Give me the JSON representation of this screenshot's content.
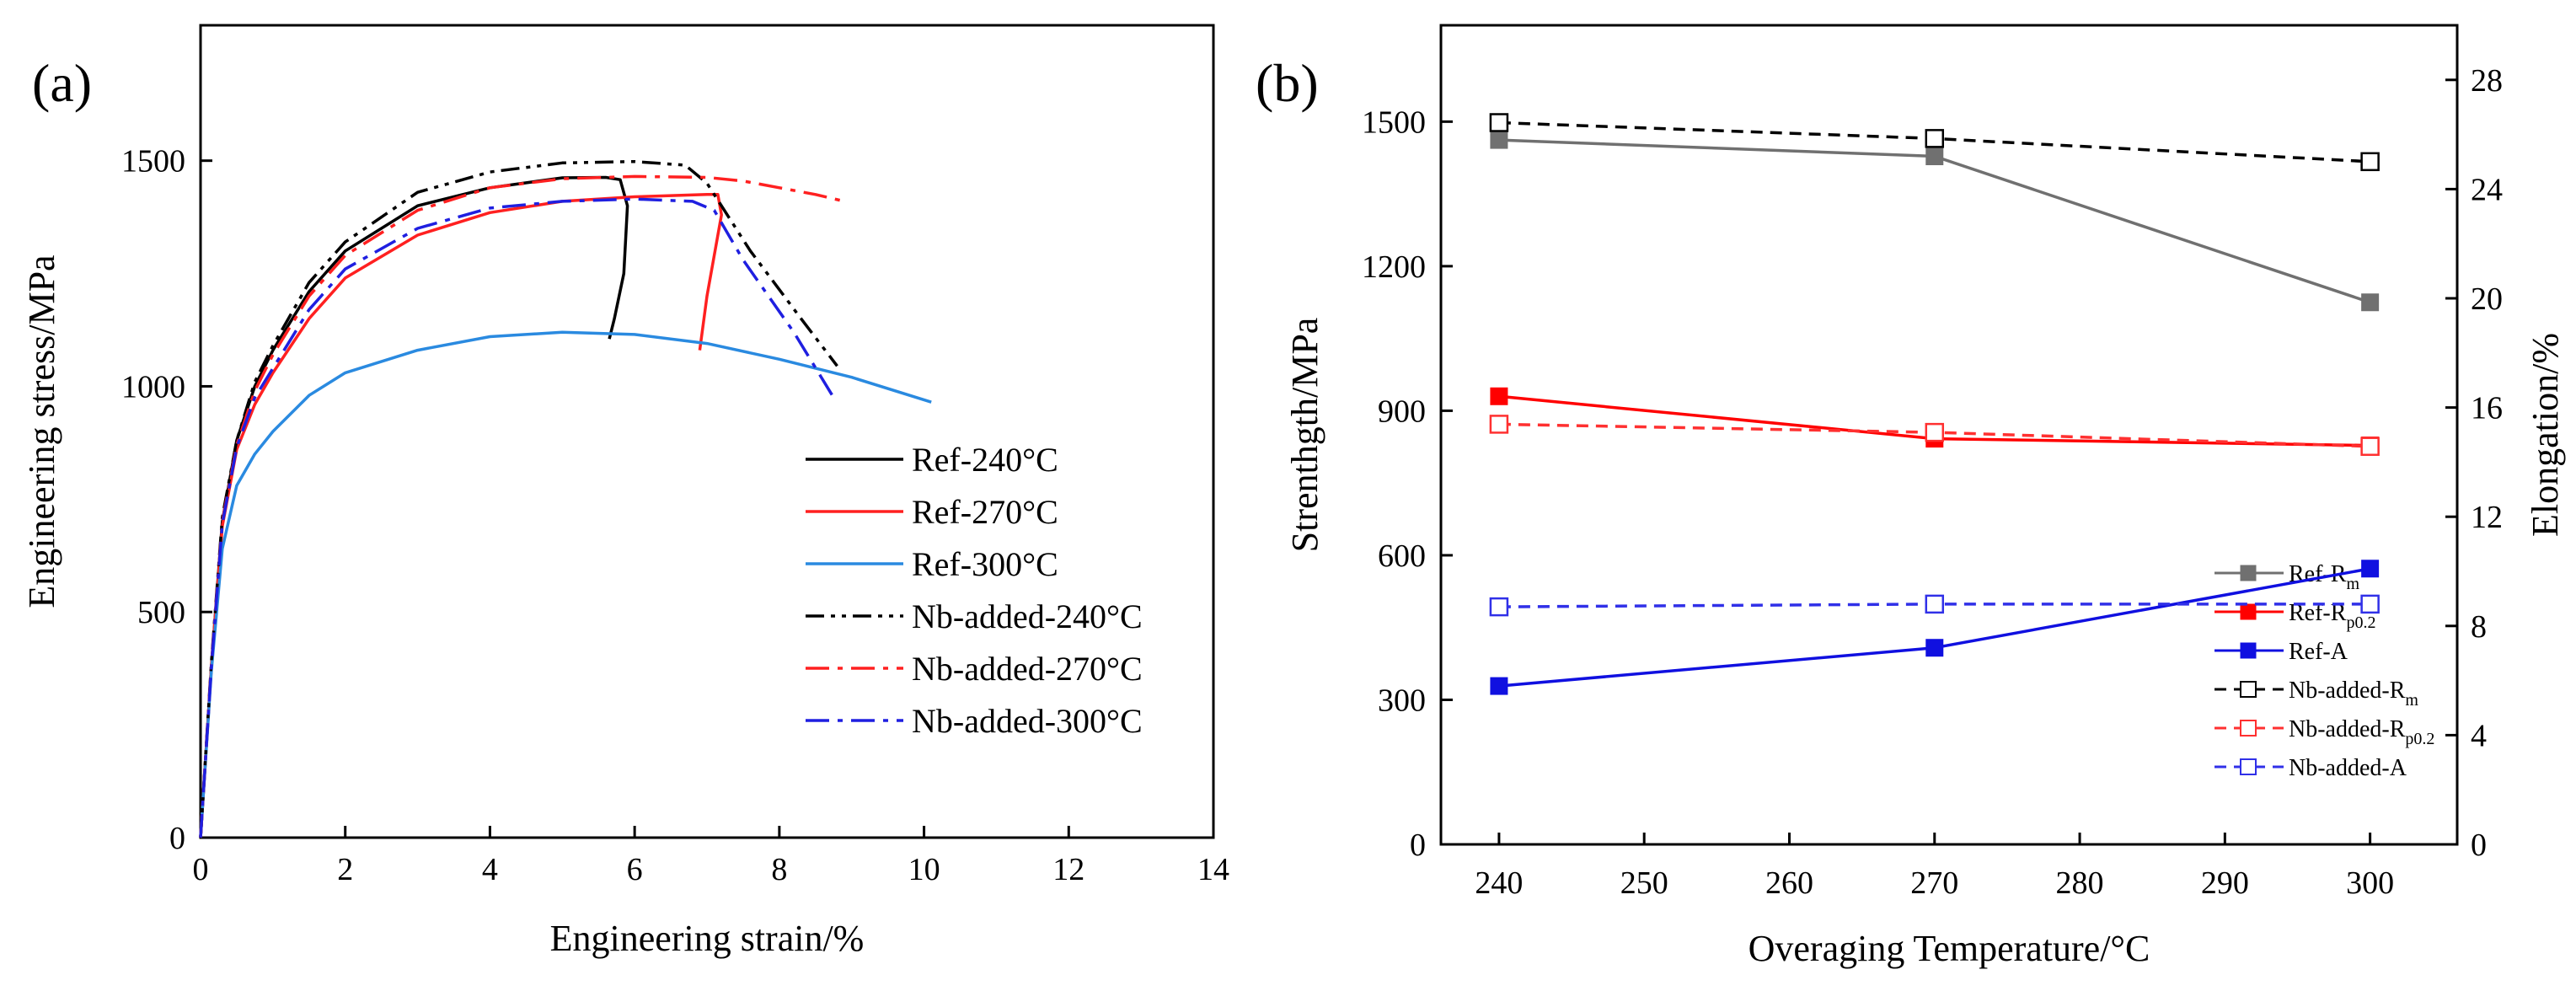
{
  "chart_data": [
    {
      "type": "line",
      "panel_label": "(a)",
      "xlabel": "Engineering strain/%",
      "ylabel": "Engineering stress/MPa",
      "xlim": [
        0,
        14
      ],
      "ylim": [
        0,
        1800
      ],
      "xticks": [
        "0",
        "2",
        "4",
        "6",
        "8",
        "10",
        "12",
        "14"
      ],
      "yticks": [
        "0",
        "500",
        "1000",
        "1500"
      ],
      "legend_position": "bottom-right",
      "series": [
        {
          "name": "Ref-240°C",
          "color": "#000000",
          "dash": "solid",
          "x": [
            0,
            0.15,
            0.3,
            0.5,
            0.75,
            1.0,
            1.5,
            2.0,
            3.0,
            4.0,
            5.0,
            5.6,
            5.8,
            5.9,
            5.85,
            5.72,
            5.65
          ],
          "y": [
            0,
            380,
            700,
            880,
            1000,
            1080,
            1210,
            1300,
            1400,
            1440,
            1462,
            1463,
            1458,
            1400,
            1250,
            1150,
            1105
          ]
        },
        {
          "name": "Ref-270°C",
          "color": "#ff2020",
          "dash": "solid",
          "x": [
            0,
            0.15,
            0.3,
            0.5,
            0.75,
            1.0,
            1.5,
            2.0,
            3.0,
            4.0,
            5.0,
            6.0,
            7.0,
            7.15,
            7.2,
            7.0,
            6.9
          ],
          "y": [
            0,
            380,
            690,
            860,
            960,
            1030,
            1150,
            1240,
            1335,
            1385,
            1410,
            1420,
            1425,
            1425,
            1380,
            1200,
            1080
          ]
        },
        {
          "name": "Ref-300°C",
          "color": "#2a8ae0",
          "dash": "solid",
          "x": [
            0,
            0.15,
            0.3,
            0.5,
            0.75,
            1.0,
            1.5,
            2.0,
            3.0,
            4.0,
            5.0,
            6.0,
            7.0,
            8.0,
            9.0,
            10.1
          ],
          "y": [
            0,
            370,
            640,
            780,
            850,
            900,
            980,
            1030,
            1080,
            1110,
            1120,
            1115,
            1095,
            1060,
            1020,
            965
          ]
        },
        {
          "name": "Nb-added-240°C",
          "color": "#000000",
          "dash": "dashdotdot",
          "x": [
            0,
            0.15,
            0.3,
            0.5,
            0.75,
            1.0,
            1.5,
            2.0,
            3.0,
            4.0,
            5.0,
            6.0,
            6.7,
            7.0,
            7.6,
            8.3,
            8.8
          ],
          "y": [
            0,
            390,
            710,
            880,
            1010,
            1090,
            1230,
            1320,
            1430,
            1475,
            1495,
            1498,
            1490,
            1450,
            1300,
            1150,
            1045
          ]
        },
        {
          "name": "Nb-added-270°C",
          "color": "#ff2020",
          "dash": "dashdot",
          "x": [
            0,
            0.15,
            0.3,
            0.5,
            0.75,
            1.0,
            1.5,
            2.0,
            3.0,
            4.0,
            5.0,
            6.0,
            7.0,
            7.5,
            8.0,
            8.5,
            8.9
          ],
          "y": [
            0,
            385,
            700,
            870,
            990,
            1070,
            1200,
            1290,
            1390,
            1440,
            1460,
            1465,
            1463,
            1455,
            1440,
            1425,
            1410
          ]
        },
        {
          "name": "Nb-added-300°C",
          "color": "#1f1fe0",
          "dash": "dashdot",
          "x": [
            0,
            0.15,
            0.3,
            0.5,
            0.75,
            1.0,
            1.5,
            2.0,
            3.0,
            4.0,
            5.0,
            6.0,
            6.8,
            7.1,
            7.5,
            8.2,
            8.75
          ],
          "y": [
            0,
            380,
            695,
            865,
            975,
            1040,
            1170,
            1260,
            1350,
            1395,
            1410,
            1415,
            1410,
            1390,
            1280,
            1120,
            975
          ]
        }
      ]
    },
    {
      "type": "line",
      "panel_label": "(b)",
      "xlabel": "Overaging Temperature/°C",
      "ylabel": "Strenthgth/MPa",
      "y2label": "Elongation/%",
      "xlim": [
        236,
        306
      ],
      "ylim": [
        0,
        1700
      ],
      "y2lim": [
        0,
        30
      ],
      "xticks": [
        "240",
        "250",
        "260",
        "270",
        "280",
        "290",
        "300"
      ],
      "yticks": [
        "0",
        "300",
        "600",
        "900",
        "1200",
        "1500"
      ],
      "y2ticks": [
        "0",
        "4",
        "8",
        "12",
        "16",
        "20",
        "24",
        "28"
      ],
      "categories": [
        240,
        270,
        300
      ],
      "legend_position": "bottom-right",
      "series": [
        {
          "name": "Ref-R",
          "sub": "m",
          "color": "#707070",
          "dash": "solid",
          "marker": "filled",
          "axis": "left",
          "values": [
            1462,
            1428,
            1125
          ]
        },
        {
          "name": "Ref-R",
          "sub": "p0.2",
          "color": "#ff0000",
          "dash": "solid",
          "marker": "filled",
          "axis": "left",
          "values": [
            930,
            842,
            828
          ]
        },
        {
          "name": "Ref-A",
          "sub": "",
          "color": "#1010e0",
          "dash": "solid",
          "marker": "filled",
          "axis": "right",
          "values": [
            5.8,
            7.2,
            10.1
          ]
        },
        {
          "name": "Nb-added-R",
          "sub": "m",
          "color": "#000000",
          "dash": "dashed",
          "marker": "open",
          "axis": "left",
          "values": [
            1498,
            1465,
            1417
          ]
        },
        {
          "name": "Nb-added-R",
          "sub": "p0.2",
          "color": "#ff3030",
          "dash": "dashed",
          "marker": "open",
          "axis": "left",
          "values": [
            872,
            855,
            826
          ]
        },
        {
          "name": "Nb-added-A",
          "sub": "",
          "color": "#3030e8",
          "dash": "dashed",
          "marker": "open",
          "axis": "right",
          "values": [
            8.7,
            8.8,
            8.8
          ]
        }
      ]
    }
  ]
}
